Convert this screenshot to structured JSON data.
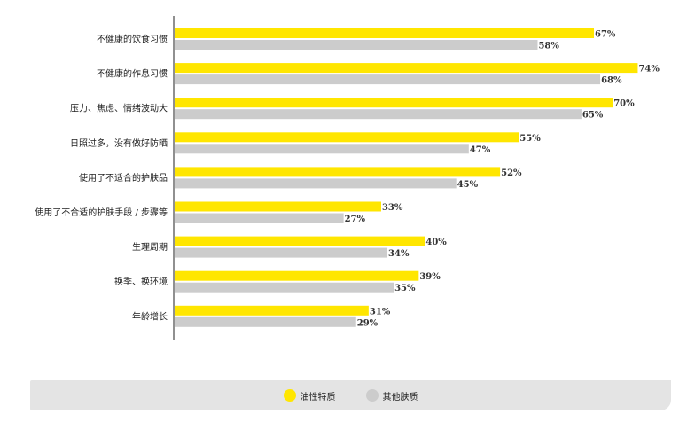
{
  "chart_data": {
    "type": "bar",
    "orientation": "horizontal",
    "categories": [
      "不健康的饮食习惯",
      "不健康的作息习惯",
      "压力、焦虑、情绪波动大",
      "日照过多，没有做好防晒",
      "使用了不适合的护肤品",
      "使用了不合适的护肤手段 / 步骤等",
      "生理周期",
      "换季、换环境",
      "年龄增长"
    ],
    "series": [
      {
        "name": "油性特质",
        "color": "#ffe600",
        "values": [
          67,
          74,
          70,
          55,
          52,
          33,
          40,
          39,
          31
        ],
        "labels": [
          "67%",
          "74%",
          "70%",
          "55%",
          "52%",
          "33%",
          "40%",
          "39%",
          "31%"
        ]
      },
      {
        "name": "其他肤质",
        "color": "#cccccc",
        "values": [
          58,
          68,
          65,
          47,
          45,
          27,
          34,
          35,
          29
        ],
        "labels": [
          "58%",
          "68%",
          "65%",
          "47%",
          "45%",
          "27%",
          "34%",
          "35%",
          "29%"
        ]
      }
    ],
    "xlim": [
      0,
      100
    ],
    "grid": false,
    "legend_position": "bottom"
  }
}
